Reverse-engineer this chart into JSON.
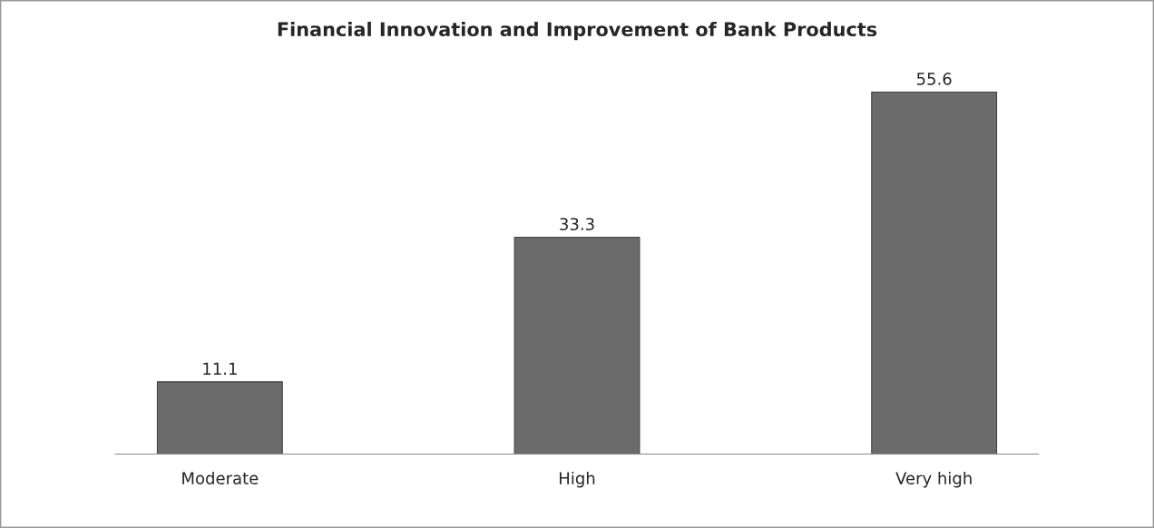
{
  "chart_data": {
    "type": "bar",
    "title": "Financial Innovation and Improvement of Bank Products",
    "categories": [
      "Moderate",
      "High",
      "Very high"
    ],
    "values": [
      11.1,
      33.3,
      55.6
    ],
    "color": "#6b6b6b",
    "data_labels": true
  }
}
